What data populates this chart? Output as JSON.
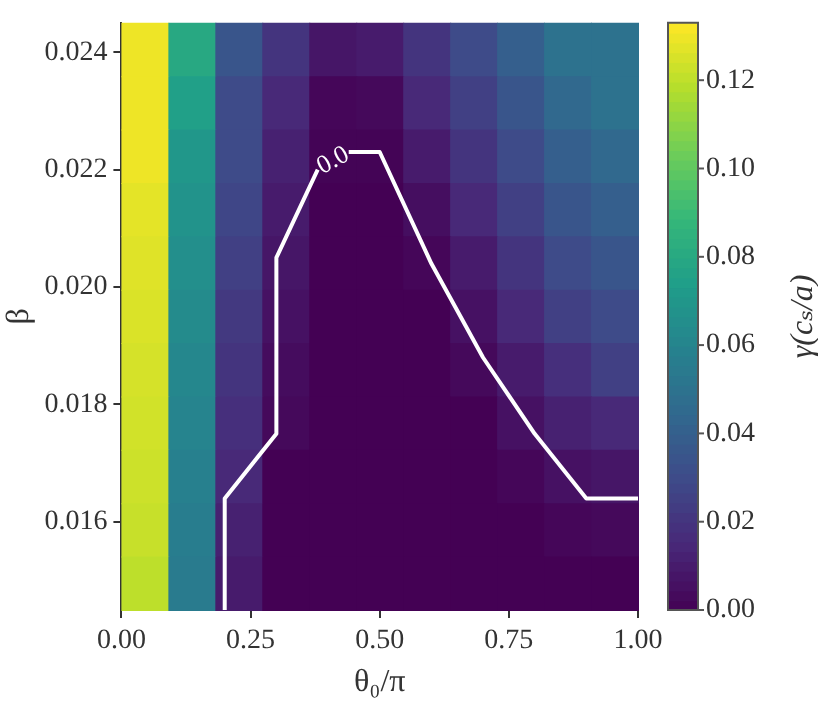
{
  "chart_data": {
    "type": "heatmap",
    "xlabel": "θ₀/π",
    "ylabel": "β",
    "clabel": "γ(cₛ/a)",
    "xlim": [
      0,
      1
    ],
    "xticks": [
      {
        "value": 0,
        "label": "0.00"
      },
      {
        "value": 0.25,
        "label": "0.25"
      },
      {
        "value": 0.5,
        "label": "0.50"
      },
      {
        "value": 0.75,
        "label": "0.75"
      },
      {
        "value": 1,
        "label": "1.00"
      }
    ],
    "ylim": [
      0.0145,
      0.0245
    ],
    "yticks": [
      0.016,
      0.018,
      {
        "value": 0.02,
        "label": "0.020"
      },
      0.022,
      0.024
    ],
    "clim": [
      0,
      0.133
    ],
    "cticks": [
      {
        "value": 0,
        "label": "0.00"
      },
      {
        "value": 0.02,
        "label": "0.02"
      },
      {
        "value": 0.04,
        "label": "0.04"
      },
      {
        "value": 0.06,
        "label": "0.06"
      },
      {
        "value": 0.08,
        "label": "0.08"
      },
      {
        "value": 0.1,
        "label": "0.10"
      },
      {
        "value": 0.12,
        "label": "0.12"
      }
    ],
    "cells": [
      [
        0.13,
        0.08,
        0.035,
        0.02,
        0.008,
        0.01,
        0.02,
        0.03,
        0.04,
        0.05,
        0.05
      ],
      [
        0.13,
        0.075,
        0.03,
        0.015,
        0.002,
        0.003,
        0.015,
        0.025,
        0.035,
        0.045,
        0.05
      ],
      [
        0.13,
        0.07,
        0.03,
        0.012,
        0.001,
        0.001,
        0.01,
        0.02,
        0.03,
        0.04,
        0.045
      ],
      [
        0.128,
        0.068,
        0.028,
        0.01,
        0,
        0,
        0.005,
        0.015,
        0.025,
        0.035,
        0.04
      ],
      [
        0.127,
        0.066,
        0.025,
        0.008,
        0,
        0,
        0.002,
        0.01,
        0.02,
        0.03,
        0.035
      ],
      [
        0.126,
        0.064,
        0.022,
        0.006,
        0,
        0,
        0,
        0.006,
        0.015,
        0.025,
        0.03
      ],
      [
        0.125,
        0.062,
        0.02,
        0.004,
        0,
        0,
        0,
        0.003,
        0.01,
        0.018,
        0.025
      ],
      [
        0.124,
        0.06,
        0.018,
        0.003,
        0,
        0,
        0,
        0,
        0.006,
        0.012,
        0.015
      ],
      [
        0.123,
        0.058,
        0.015,
        0,
        0,
        0,
        0,
        0,
        0.002,
        0.006,
        0.008
      ],
      [
        0.122,
        0.056,
        0.012,
        0,
        0,
        0,
        0,
        0,
        0,
        0.002,
        0.003
      ],
      [
        0.12,
        0.055,
        0.01,
        0,
        0,
        0,
        0,
        0,
        0,
        0,
        0
      ]
    ],
    "series": [
      {
        "type": "line",
        "color": "#ffffff",
        "x": [
          0.2,
          0.2,
          0.3,
          0.3,
          0.38,
          0.41,
          0.44,
          0.5,
          0.6,
          0.7,
          0.8,
          0.9,
          1.0
        ],
        "values": [
          0.0145,
          0.0164,
          0.0175,
          0.0205,
          0.022,
          null,
          0.0223,
          0.0223,
          0.0204,
          0.0188,
          0.0175,
          0.0164,
          0.0164
        ]
      }
    ],
    "annotations": [
      "0.0"
    ],
    "grid": false,
    "legend": false
  }
}
